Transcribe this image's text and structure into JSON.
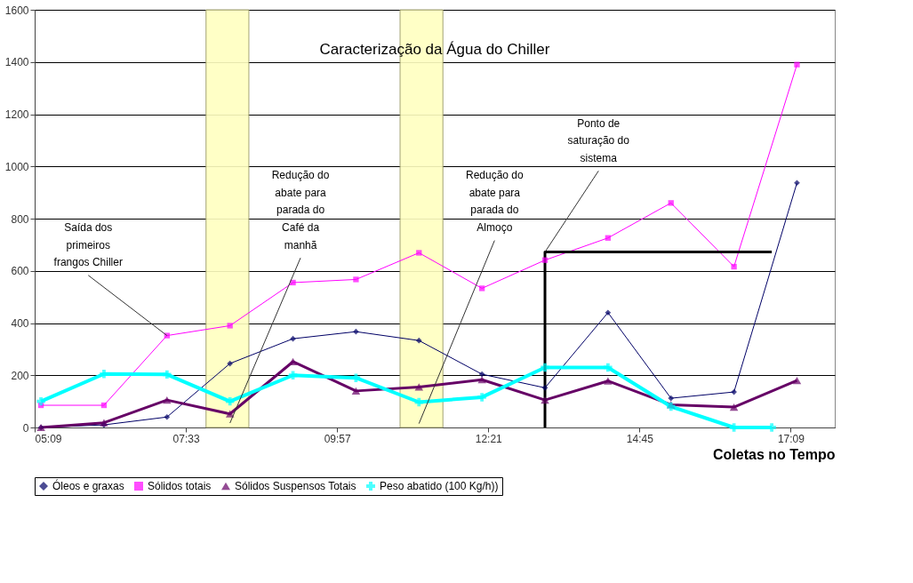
{
  "chart_data": {
    "type": "line",
    "title": "Caracterização da Água do Chiller",
    "xlabel": "Coletas no Tempo",
    "x": [
      5.25,
      6.25,
      7.25,
      8.25,
      9.25,
      10.25,
      11.25,
      12.25,
      13.25,
      14.25,
      15.25,
      16.25,
      17.25
    ],
    "series": [
      {
        "name": "Óleos e graxas",
        "color": "#000066",
        "marker": "diamond",
        "values": [
          0,
          10,
          40,
          245,
          340,
          367,
          333,
          204,
          152,
          440,
          112,
          136,
          937
        ]
      },
      {
        "name": "Sólidos totais",
        "color": "#ff00ff",
        "marker": "square",
        "values": [
          85,
          85,
          352,
          390,
          555,
          567,
          669,
          533,
          641,
          726,
          860,
          616,
          1390
        ]
      },
      {
        "name": "Sólidos Suspensos Totais",
        "color": "#660066",
        "marker": "triangle",
        "values": [
          0,
          18,
          105,
          52,
          252,
          140,
          155,
          183,
          105,
          178,
          87,
          78,
          180
        ]
      },
      {
        "name": "Peso abatido (100 Kg/h))",
        "color": "#00ffff",
        "marker": "cross",
        "x": [
          5.25,
          6.25,
          7.25,
          8.25,
          9.25,
          10.25,
          11.25,
          12.25,
          13.25,
          14.25,
          15.25,
          16.25,
          16.85
        ],
        "values": [
          100,
          205,
          203,
          100,
          200,
          190,
          97,
          116,
          230,
          230,
          80,
          0,
          0
        ]
      },
      {
        "color": "#000000",
        "marker": "none",
        "x": [
          13.25,
          13.25,
          16.85
        ],
        "values": [
          0,
          672,
          672
        ]
      }
    ],
    "xlim": [
      5.15,
      17.85
    ],
    "ylim": [
      0,
      1600
    ],
    "xticks": [
      {
        "value": 5.15,
        "label": "05:09"
      },
      {
        "value": 7.55,
        "label": "07:33"
      },
      {
        "value": 9.95,
        "label": "09:57"
      },
      {
        "value": 12.35,
        "label": "12:21"
      },
      {
        "value": 14.75,
        "label": "14:45"
      },
      {
        "value": 17.15,
        "label": "17:09"
      }
    ],
    "yticks": [
      0,
      200,
      400,
      600,
      800,
      1000,
      1200,
      1400,
      1600
    ],
    "bands": [
      {
        "axis": "x",
        "from": 7.87,
        "to": 8.55,
        "color": "#ffffc0"
      },
      {
        "axis": "x",
        "from": 10.95,
        "to": 11.63,
        "color": "#ffffc0"
      }
    ],
    "annotations": [
      {
        "text": "Saída dos\nprimeiros\nfrangos Chiller",
        "x": 7.25,
        "y": 352
      },
      {
        "text": "Redução do\nabate para\nparada do\nCafé da\nmanhã",
        "x": 8.25,
        "y": 17
      },
      {
        "text": "Redução do\nabate para\nparada do\nAlmoço",
        "x": 11.25,
        "y": 15
      },
      {
        "text": "Ponto de\nsaturação do\nsistema",
        "x": 13.25,
        "y": 672
      }
    ],
    "grid": "y",
    "legend": "bottom"
  }
}
